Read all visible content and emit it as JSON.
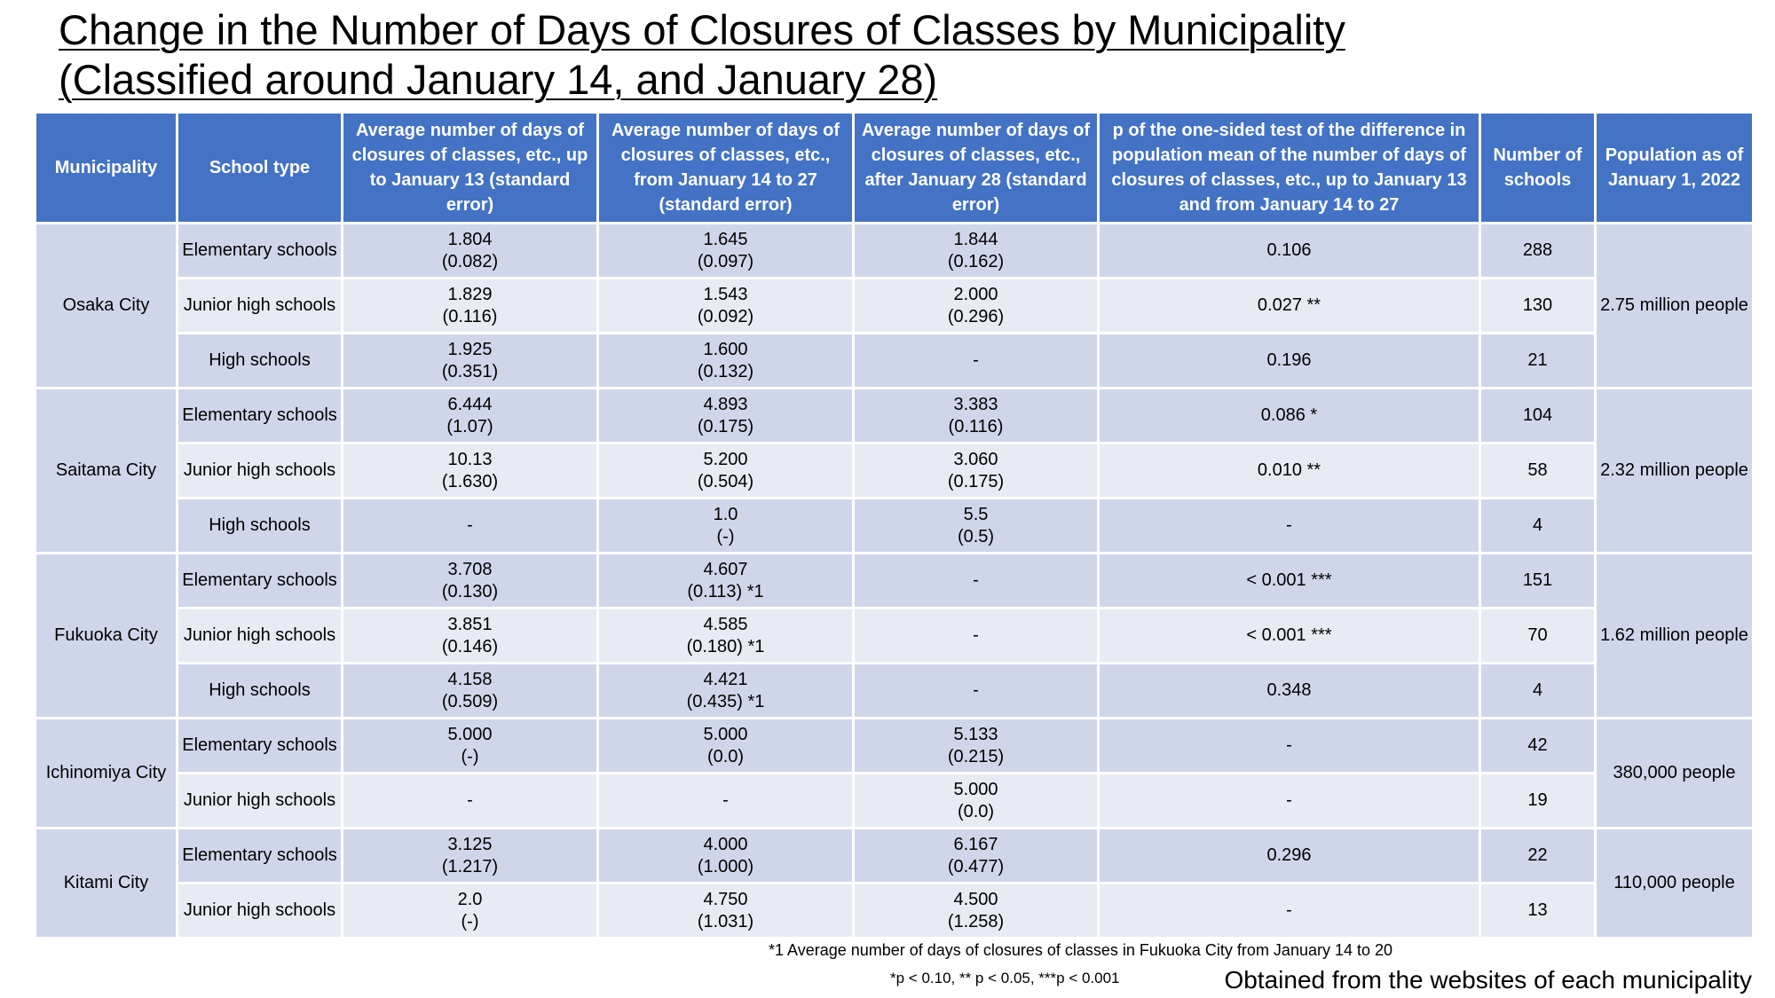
{
  "title": {
    "line1": "Change in the Number of Days of Closures of Classes by Municipality",
    "line2": "(Classified around January 14, and January 28)"
  },
  "table": {
    "headers": [
      "Municipality",
      "School type",
      "Average number of days of closures of classes, etc., up to January 13 (standard error)",
      "Average number of days of closures of classes, etc., from January 14 to 27 (standard error)",
      "Average number of days of closures of classes, etc., after January 28 (standard error)",
      "p of the one-sided test of the difference in population mean of the number of days of closures of classes, etc., up to January 13 and from January 14 to 27",
      "Number of schools",
      "Population as of January 1, 2022"
    ],
    "groups": [
      {
        "municipality": "Osaka City",
        "population": "2.75 million people",
        "rows": [
          {
            "school_type": "Elementary schools",
            "upto13": [
              "1.804",
              "(0.082)"
            ],
            "jan14_27": [
              "1.645",
              "(0.097)"
            ],
            "after28": [
              "1.844",
              "(0.162)"
            ],
            "p": "0.106",
            "schools": "288"
          },
          {
            "school_type": "Junior high schools",
            "upto13": [
              "1.829",
              "(0.116)"
            ],
            "jan14_27": [
              "1.543",
              "(0.092)"
            ],
            "after28": [
              "2.000",
              "(0.296)"
            ],
            "p": "0.027 **",
            "schools": "130"
          },
          {
            "school_type": "High schools",
            "upto13": [
              "1.925",
              "(0.351)"
            ],
            "jan14_27": [
              "1.600",
              "(0.132)"
            ],
            "after28": [
              "-",
              ""
            ],
            "p": "0.196",
            "schools": "21"
          }
        ]
      },
      {
        "municipality": "Saitama City",
        "population": "2.32 million people",
        "rows": [
          {
            "school_type": "Elementary schools",
            "upto13": [
              "6.444",
              "(1.07)"
            ],
            "jan14_27": [
              "4.893",
              "(0.175)"
            ],
            "after28": [
              "3.383",
              "(0.116)"
            ],
            "p": "0.086 *",
            "schools": "104"
          },
          {
            "school_type": "Junior high schools",
            "upto13": [
              "10.13",
              "(1.630)"
            ],
            "jan14_27": [
              "5.200",
              "(0.504)"
            ],
            "after28": [
              "3.060",
              "(0.175)"
            ],
            "p": "0.010 **",
            "schools": "58"
          },
          {
            "school_type": "High schools",
            "upto13": [
              "-",
              ""
            ],
            "jan14_27": [
              "1.0",
              "(-)"
            ],
            "after28": [
              "5.5",
              "(0.5)"
            ],
            "p": "-",
            "schools": "4"
          }
        ]
      },
      {
        "municipality": "Fukuoka City",
        "population": "1.62 million people",
        "rows": [
          {
            "school_type": "Elementary schools",
            "upto13": [
              "3.708",
              "(0.130)"
            ],
            "jan14_27": [
              "4.607",
              "(0.113) *1"
            ],
            "after28": [
              "-",
              ""
            ],
            "p": "< 0.001 ***",
            "schools": "151"
          },
          {
            "school_type": "Junior high schools",
            "upto13": [
              "3.851",
              "(0.146)"
            ],
            "jan14_27": [
              "4.585",
              "(0.180) *1"
            ],
            "after28": [
              "-",
              ""
            ],
            "p": "< 0.001 ***",
            "schools": "70"
          },
          {
            "school_type": "High schools",
            "upto13": [
              "4.158",
              "(0.509)"
            ],
            "jan14_27": [
              "4.421",
              "(0.435) *1"
            ],
            "after28": [
              "-",
              ""
            ],
            "p": "0.348",
            "schools": "4"
          }
        ]
      },
      {
        "municipality": "Ichinomiya City",
        "population": "380,000 people",
        "rows": [
          {
            "school_type": "Elementary schools",
            "upto13": [
              "5.000",
              "(-)"
            ],
            "jan14_27": [
              "5.000",
              "(0.0)"
            ],
            "after28": [
              "5.133",
              "(0.215)"
            ],
            "p": "-",
            "schools": "42"
          },
          {
            "school_type": "Junior high schools",
            "upto13": [
              "-",
              ""
            ],
            "jan14_27": [
              "-",
              ""
            ],
            "after28": [
              "5.000",
              "(0.0)"
            ],
            "p": "-",
            "schools": "19"
          }
        ]
      },
      {
        "municipality": "Kitami City",
        "population": "110,000 people",
        "rows": [
          {
            "school_type": "Elementary schools",
            "upto13": [
              "3.125",
              "(1.217)"
            ],
            "jan14_27": [
              "4.000",
              "(1.000)"
            ],
            "after28": [
              "6.167",
              "(0.477)"
            ],
            "p": "0.296",
            "schools": "22"
          },
          {
            "school_type": "Junior high schools",
            "upto13": [
              "2.0",
              "(-)"
            ],
            "jan14_27": [
              "4.750",
              "(1.031)"
            ],
            "after28": [
              "4.500",
              "(1.258)"
            ],
            "p": "-",
            "schools": "13"
          }
        ]
      }
    ]
  },
  "footnotes": {
    "note1": "*1 Average number of days of closures of classes in Fukuoka City from January 14 to 20",
    "significance": "*p < 0.10, ** p < 0.05, ***p < 0.001"
  },
  "source": "Obtained from the websites of each municipality"
}
